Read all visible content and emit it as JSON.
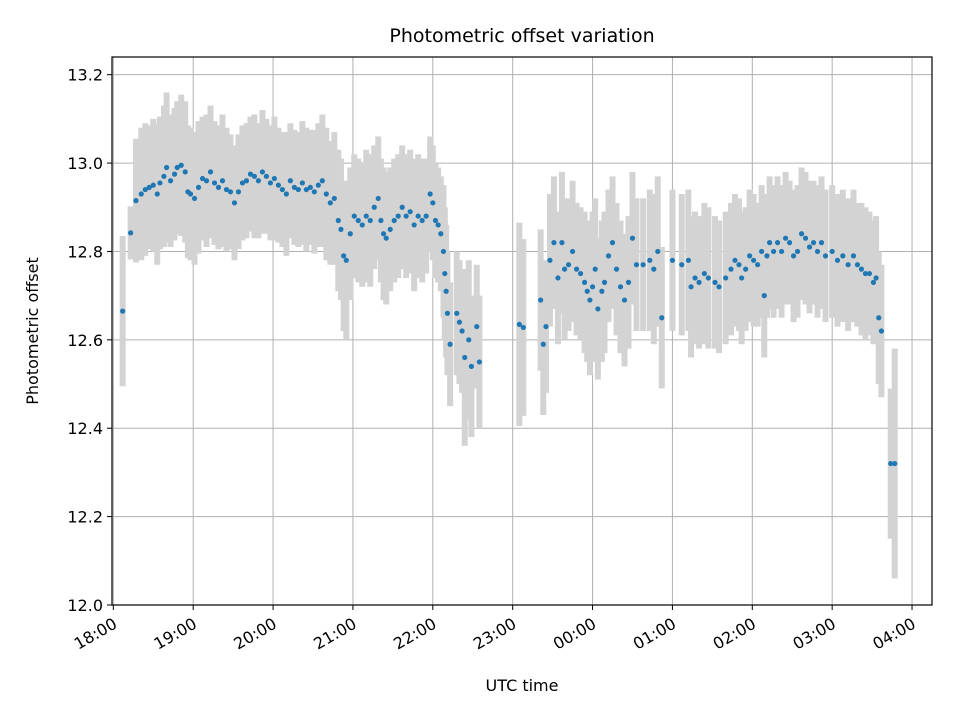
{
  "chart_data": {
    "type": "scatter",
    "title": "Photometric offset variation",
    "xlabel": "UTC time",
    "ylabel": "Photometric offset",
    "ylim": [
      12.0,
      13.24
    ],
    "xlim": [
      "17:59",
      "04:15"
    ],
    "x_ticks": [
      "18:00",
      "19:00",
      "20:00",
      "21:00",
      "22:00",
      "23:00",
      "00:00",
      "01:00",
      "02:00",
      "03:00",
      "04:00"
    ],
    "y_ticks": [
      "12.0",
      "12.2",
      "12.4",
      "12.6",
      "12.8",
      "13.0",
      "13.2"
    ],
    "grid": true,
    "colors": {
      "points": "#1f77b4",
      "errorbars": "#d3d3d3",
      "grid": "#b0b0b0"
    },
    "series": [
      {
        "points": [
          [
            "18:07",
            12.665,
            0.17
          ],
          [
            "18:13",
            12.842,
            0.06
          ],
          [
            "18:17",
            12.915,
            0.14
          ],
          [
            "18:21",
            12.93,
            0.15
          ],
          [
            "18:24",
            12.94,
            0.15
          ],
          [
            "18:27",
            12.945,
            0.14
          ],
          [
            "18:30",
            12.95,
            0.15
          ],
          [
            "18:33",
            12.93,
            0.16
          ],
          [
            "18:35",
            12.955,
            0.15
          ],
          [
            "18:38",
            12.97,
            0.16
          ],
          [
            "18:40",
            12.99,
            0.17
          ],
          [
            "18:43",
            12.96,
            0.15
          ],
          [
            "18:46",
            12.975,
            0.15
          ],
          [
            "18:48",
            12.99,
            0.15
          ],
          [
            "18:51",
            12.995,
            0.16
          ],
          [
            "18:54",
            12.98,
            0.16
          ],
          [
            "18:56",
            12.935,
            0.15
          ],
          [
            "18:58",
            12.93,
            0.15
          ],
          [
            "19:01",
            12.92,
            0.15
          ],
          [
            "19:04",
            12.945,
            0.15
          ],
          [
            "19:07",
            12.965,
            0.14
          ],
          [
            "19:10",
            12.96,
            0.15
          ],
          [
            "19:13",
            12.98,
            0.15
          ],
          [
            "19:16",
            12.955,
            0.14
          ],
          [
            "19:19",
            12.945,
            0.14
          ],
          [
            "19:22",
            12.96,
            0.15
          ],
          [
            "19:25",
            12.94,
            0.14
          ],
          [
            "19:28",
            12.935,
            0.13
          ],
          [
            "19:31",
            12.91,
            0.13
          ],
          [
            "19:34",
            12.935,
            0.13
          ],
          [
            "19:37",
            12.955,
            0.13
          ],
          [
            "19:40",
            12.96,
            0.13
          ],
          [
            "19:43",
            12.975,
            0.13
          ],
          [
            "19:46",
            12.97,
            0.14
          ],
          [
            "19:49",
            12.96,
            0.13
          ],
          [
            "19:52",
            12.98,
            0.14
          ],
          [
            "19:55",
            12.97,
            0.13
          ],
          [
            "19:58",
            12.955,
            0.13
          ],
          [
            "20:01",
            12.965,
            0.14
          ],
          [
            "20:04",
            12.95,
            0.13
          ],
          [
            "20:07",
            12.94,
            0.13
          ],
          [
            "20:10",
            12.93,
            0.14
          ],
          [
            "20:13",
            12.96,
            0.13
          ],
          [
            "20:16",
            12.945,
            0.13
          ],
          [
            "20:19",
            12.94,
            0.13
          ],
          [
            "20:22",
            12.955,
            0.14
          ],
          [
            "20:25",
            12.94,
            0.14
          ],
          [
            "20:28",
            12.945,
            0.13
          ],
          [
            "20:31",
            12.935,
            0.14
          ],
          [
            "20:34",
            12.95,
            0.14
          ],
          [
            "20:37",
            12.96,
            0.15
          ],
          [
            "20:40",
            12.93,
            0.15
          ],
          [
            "20:43",
            12.91,
            0.14
          ],
          [
            "20:46",
            12.92,
            0.15
          ],
          [
            "20:49",
            12.87,
            0.16
          ],
          [
            "20:51",
            12.85,
            0.16
          ],
          [
            "20:53",
            12.79,
            0.17
          ],
          [
            "20:55",
            12.78,
            0.18
          ],
          [
            "20:58",
            12.84,
            0.15
          ],
          [
            "21:01",
            12.88,
            0.14
          ],
          [
            "21:04",
            12.87,
            0.14
          ],
          [
            "21:07",
            12.86,
            0.14
          ],
          [
            "21:10",
            12.88,
            0.15
          ],
          [
            "21:13",
            12.87,
            0.15
          ],
          [
            "21:16",
            12.9,
            0.14
          ],
          [
            "21:19",
            12.92,
            0.14
          ],
          [
            "21:21",
            12.87,
            0.14
          ],
          [
            "21:23",
            12.84,
            0.15
          ],
          [
            "21:25",
            12.83,
            0.15
          ],
          [
            "21:28",
            12.85,
            0.14
          ],
          [
            "21:31",
            12.87,
            0.14
          ],
          [
            "21:34",
            12.88,
            0.14
          ],
          [
            "21:37",
            12.9,
            0.14
          ],
          [
            "21:40",
            12.88,
            0.14
          ],
          [
            "21:43",
            12.89,
            0.14
          ],
          [
            "21:46",
            12.86,
            0.15
          ],
          [
            "21:49",
            12.88,
            0.14
          ],
          [
            "21:52",
            12.87,
            0.14
          ],
          [
            "21:55",
            12.88,
            0.13
          ],
          [
            "21:58",
            12.93,
            0.13
          ],
          [
            "22:00",
            12.91,
            0.13
          ],
          [
            "22:02",
            12.87,
            0.13
          ],
          [
            "22:04",
            12.86,
            0.13
          ],
          [
            "22:06",
            12.84,
            0.13
          ],
          [
            "22:08",
            12.8,
            0.15
          ],
          [
            "22:09",
            12.75,
            0.15
          ],
          [
            "22:10",
            12.71,
            0.15
          ],
          [
            "22:11",
            12.66,
            0.14
          ],
          [
            "22:13",
            12.59,
            0.14
          ],
          [
            "22:18",
            12.66,
            0.14
          ],
          [
            "22:20",
            12.64,
            0.14
          ],
          [
            "22:22",
            12.62,
            0.14
          ],
          [
            "22:24",
            12.56,
            0.2
          ],
          [
            "22:27",
            12.6,
            0.18
          ],
          [
            "22:29",
            12.54,
            0.16
          ],
          [
            "22:33",
            12.63,
            0.14
          ],
          [
            "22:35",
            12.55,
            0.15
          ],
          [
            "23:05",
            12.635,
            0.23
          ],
          [
            "23:08",
            12.628,
            0.2
          ],
          [
            "23:21",
            12.69,
            0.16
          ],
          [
            "23:23",
            12.59,
            0.16
          ],
          [
            "23:25",
            12.63,
            0.15
          ],
          [
            "23:28",
            12.78,
            0.15
          ],
          [
            "23:31",
            12.82,
            0.15
          ],
          [
            "23:34",
            12.74,
            0.15
          ],
          [
            "23:37",
            12.82,
            0.16
          ],
          [
            "23:39",
            12.76,
            0.16
          ],
          [
            "23:42",
            12.77,
            0.15
          ],
          [
            "23:45",
            12.8,
            0.16
          ],
          [
            "23:48",
            12.76,
            0.15
          ],
          [
            "23:51",
            12.75,
            0.15
          ],
          [
            "23:54",
            12.73,
            0.16
          ],
          [
            "23:56",
            12.71,
            0.16
          ],
          [
            "23:58",
            12.69,
            0.17
          ],
          [
            "00:00",
            12.72,
            0.17
          ],
          [
            "00:02",
            12.76,
            0.16
          ],
          [
            "00:04",
            12.67,
            0.16
          ],
          [
            "00:07",
            12.71,
            0.16
          ],
          [
            "00:09",
            12.73,
            0.16
          ],
          [
            "00:12",
            12.79,
            0.15
          ],
          [
            "00:15",
            12.82,
            0.15
          ],
          [
            "00:18",
            12.76,
            0.15
          ],
          [
            "00:21",
            12.72,
            0.15
          ],
          [
            "00:24",
            12.69,
            0.15
          ],
          [
            "00:27",
            12.73,
            0.15
          ],
          [
            "00:30",
            12.83,
            0.15
          ],
          [
            "00:33",
            12.77,
            0.15
          ],
          [
            "00:38",
            12.77,
            0.15
          ],
          [
            "00:43",
            12.78,
            0.16
          ],
          [
            "00:46",
            12.76,
            0.17
          ],
          [
            "00:49",
            12.8,
            0.17
          ],
          [
            "00:52",
            12.65,
            0.16
          ],
          [
            "01:00",
            12.78,
            0.16
          ],
          [
            "01:07",
            12.77,
            0.16
          ],
          [
            "01:12",
            12.78,
            0.16
          ],
          [
            "01:14",
            12.72,
            0.16
          ],
          [
            "01:17",
            12.74,
            0.15
          ],
          [
            "01:20",
            12.73,
            0.15
          ],
          [
            "01:24",
            12.75,
            0.16
          ],
          [
            "01:27",
            12.74,
            0.16
          ],
          [
            "01:32",
            12.73,
            0.15
          ],
          [
            "01:35",
            12.72,
            0.15
          ],
          [
            "01:40",
            12.74,
            0.15
          ],
          [
            "01:44",
            12.76,
            0.15
          ],
          [
            "01:47",
            12.78,
            0.15
          ],
          [
            "01:50",
            12.77,
            0.15
          ],
          [
            "01:52",
            12.74,
            0.15
          ],
          [
            "01:55",
            12.76,
            0.14
          ],
          [
            "01:58",
            12.79,
            0.15
          ],
          [
            "02:01",
            12.78,
            0.15
          ],
          [
            "02:04",
            12.77,
            0.14
          ],
          [
            "02:07",
            12.8,
            0.15
          ],
          [
            "02:09",
            12.7,
            0.14
          ],
          [
            "02:11",
            12.79,
            0.14
          ],
          [
            "02:13",
            12.82,
            0.15
          ],
          [
            "02:16",
            12.8,
            0.15
          ],
          [
            "02:19",
            12.82,
            0.15
          ],
          [
            "02:22",
            12.8,
            0.15
          ],
          [
            "02:25",
            12.83,
            0.15
          ],
          [
            "02:28",
            12.82,
            0.14
          ],
          [
            "02:31",
            12.79,
            0.15
          ],
          [
            "02:34",
            12.8,
            0.15
          ],
          [
            "02:37",
            12.84,
            0.15
          ],
          [
            "02:40",
            12.83,
            0.15
          ],
          [
            "02:43",
            12.81,
            0.15
          ],
          [
            "02:46",
            12.82,
            0.14
          ],
          [
            "02:49",
            12.8,
            0.15
          ],
          [
            "02:52",
            12.82,
            0.15
          ],
          [
            "02:55",
            12.79,
            0.15
          ],
          [
            "03:00",
            12.8,
            0.15
          ],
          [
            "03:04",
            12.78,
            0.15
          ],
          [
            "03:08",
            12.79,
            0.15
          ],
          [
            "03:12",
            12.77,
            0.15
          ],
          [
            "03:16",
            12.79,
            0.15
          ],
          [
            "03:19",
            12.77,
            0.14
          ],
          [
            "03:22",
            12.76,
            0.15
          ],
          [
            "03:25",
            12.75,
            0.15
          ],
          [
            "03:28",
            12.75,
            0.14
          ],
          [
            "03:31",
            12.73,
            0.14
          ],
          [
            "03:33",
            12.74,
            0.14
          ],
          [
            "03:35",
            12.65,
            0.15
          ],
          [
            "03:37",
            12.62,
            0.15
          ],
          [
            "03:44",
            12.32,
            0.17
          ],
          [
            "03:47",
            12.32,
            0.26
          ]
        ]
      }
    ]
  }
}
